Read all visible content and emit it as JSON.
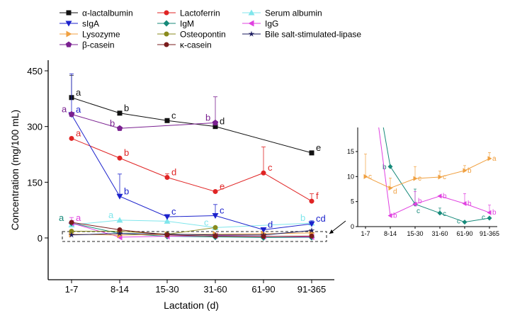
{
  "chart_data": [
    {
      "type": "line",
      "xlabel": "Lactation (d)",
      "ylabel": "Concentration (mg/100 mL)",
      "categories": [
        "1-7",
        "8-14",
        "15-30",
        "31-60",
        "61-90",
        "91-365"
      ],
      "yticks": [
        0,
        150,
        300,
        450
      ],
      "ylim": [
        -25,
        500
      ],
      "legend_position": "top-left",
      "series": [
        {
          "name": "α-lactalbumin",
          "color": "#111111",
          "marker": "square",
          "values": [
            378,
            336,
            316,
            300,
            null,
            229
          ],
          "err": [
            60,
            0,
            0,
            0,
            null,
            0
          ],
          "letters": [
            "a",
            "b",
            "c",
            "d",
            "",
            "e"
          ]
        },
        {
          "name": "Lactoferrin",
          "color": "#e02424",
          "marker": "circle",
          "values": [
            268,
            215,
            163,
            125,
            175,
            99
          ],
          "err": [
            0,
            0,
            10,
            0,
            70,
            20
          ],
          "letters": [
            "a",
            "b",
            "d",
            "e",
            "c",
            "f"
          ]
        },
        {
          "name": "Serum albumin",
          "color": "#80e6ec",
          "marker": "triangle-up",
          "values": [
            35,
            48,
            45,
            28,
            null,
            40
          ],
          "err": [
            0,
            0,
            0,
            0,
            null,
            0
          ],
          "letters": [
            "",
            "a",
            "",
            "c",
            "",
            "b"
          ]
        },
        {
          "name": "sIgA",
          "color": "#1c22cc",
          "marker": "triangle-down",
          "values": [
            332,
            112,
            57,
            60,
            22,
            38
          ],
          "err": [
            110,
            60,
            6,
            30,
            0,
            8
          ],
          "letters": [
            "a",
            "b",
            "c",
            "c",
            "d",
            "cd"
          ]
        },
        {
          "name": "IgM",
          "color": "#178a7a",
          "marker": "diamond",
          "values": [
            40,
            12,
            4.5,
            2.7,
            0.9,
            1.7
          ],
          "err": [
            0,
            0,
            3,
            1,
            0,
            0
          ],
          "letters": [
            "a",
            "b",
            "c",
            "c",
            "c",
            "c"
          ]
        },
        {
          "name": "IgG",
          "color": "#e040e0",
          "marker": "triangle-left",
          "values": [
            40,
            2.2,
            4.5,
            6.1,
            4.6,
            2.8
          ],
          "err": [
            15,
            0,
            2.5,
            0,
            2,
            1.5
          ],
          "letters": [
            "a",
            "b",
            "b",
            "b",
            "b",
            "b"
          ]
        },
        {
          "name": "Lysozyme",
          "color": "#f0a040",
          "marker": "triangle-right",
          "values": [
            10,
            7.7,
            9.6,
            9.9,
            11.2,
            13.6
          ],
          "err": [
            4.5,
            2,
            2.4,
            1.2,
            1,
            1.2
          ],
          "letters": [
            "c",
            "d",
            "c",
            "c",
            "b",
            "a"
          ]
        },
        {
          "name": "Osteopontin",
          "color": "#8a8a1c",
          "marker": "circle",
          "values": [
            18,
            18,
            10,
            28,
            null,
            null
          ],
          "err": [
            0,
            0,
            0,
            0,
            null,
            null
          ],
          "letters": [
            "",
            "",
            "",
            "",
            "",
            ""
          ]
        },
        {
          "name": "Bile salt-stimulated-lipase",
          "color": "#1a1a5e",
          "marker": "star",
          "values": [
            8,
            12,
            10,
            8,
            8,
            20
          ],
          "err": [
            0,
            0,
            0,
            0,
            0,
            0
          ],
          "letters": [
            "",
            "",
            "",
            "",
            "",
            ""
          ]
        },
        {
          "name": "β-casein",
          "color": "#7a2090",
          "marker": "pentagon",
          "values": [
            333,
            295,
            null,
            310,
            null,
            null
          ],
          "err": [
            0,
            0,
            null,
            70,
            null,
            null
          ],
          "letters": [
            "a",
            "b",
            "",
            "b",
            "",
            ""
          ]
        },
        {
          "name": "κ-casein",
          "color": "#7a1c1c",
          "marker": "circle",
          "values": [
            42,
            22,
            8,
            5,
            4,
            5
          ],
          "err": [
            0,
            0,
            0,
            0,
            0,
            0
          ],
          "letters": [
            "",
            "",
            "",
            "",
            "",
            ""
          ]
        }
      ]
    },
    {
      "type": "line",
      "title": "",
      "categories": [
        "1-7",
        "8-14",
        "15-30",
        "31-60",
        "61-90",
        "91-365"
      ],
      "yticks": [
        0,
        5,
        10,
        15
      ],
      "ylim": [
        0,
        17.5
      ],
      "series_shown": [
        "IgM",
        "IgG",
        "Lysozyme"
      ]
    }
  ]
}
